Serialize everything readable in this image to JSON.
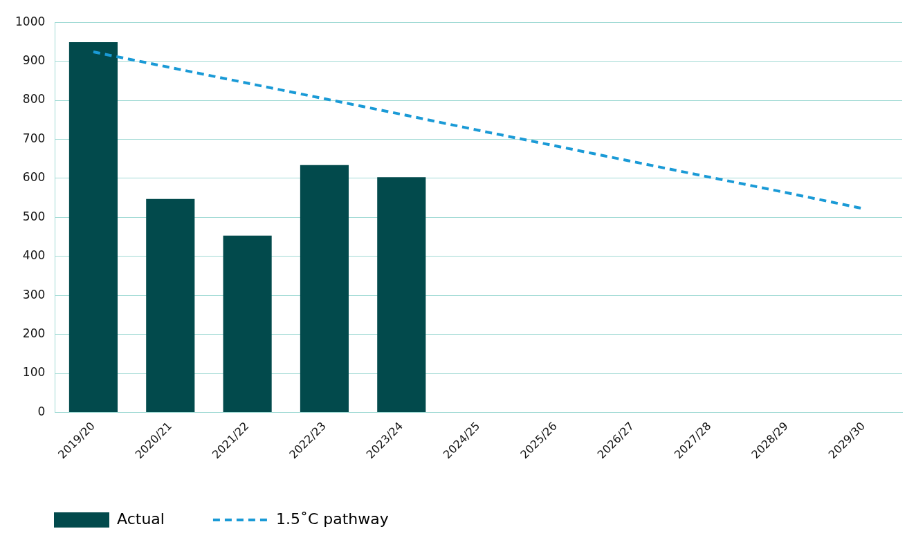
{
  "chart_data": {
    "type": "bar",
    "categories": [
      "2019/20",
      "2020/21",
      "2021/22",
      "2022/23",
      "2023/24",
      "2024/25",
      "2025/26",
      "2026/27",
      "2027/28",
      "2028/29",
      "2029/30"
    ],
    "series": [
      {
        "name": "Actual",
        "color": "#024a4c",
        "values": [
          949,
          547,
          453,
          634,
          603,
          null,
          null,
          null,
          null,
          null,
          null
        ]
      },
      {
        "name": "1.5˚C pathway",
        "type": "line",
        "color": "#1a9ad6",
        "line_style": "dashed",
        "marker": "none",
        "values": [
          924,
          884,
          844,
          804,
          764,
          723,
          683,
          643,
          603,
          563,
          522
        ]
      }
    ],
    "ylim": [
      0,
      1000
    ],
    "yticks": [
      0,
      100,
      200,
      300,
      400,
      500,
      600,
      700,
      800,
      900,
      1000
    ],
    "grid": "y",
    "legend": "bottom left"
  }
}
